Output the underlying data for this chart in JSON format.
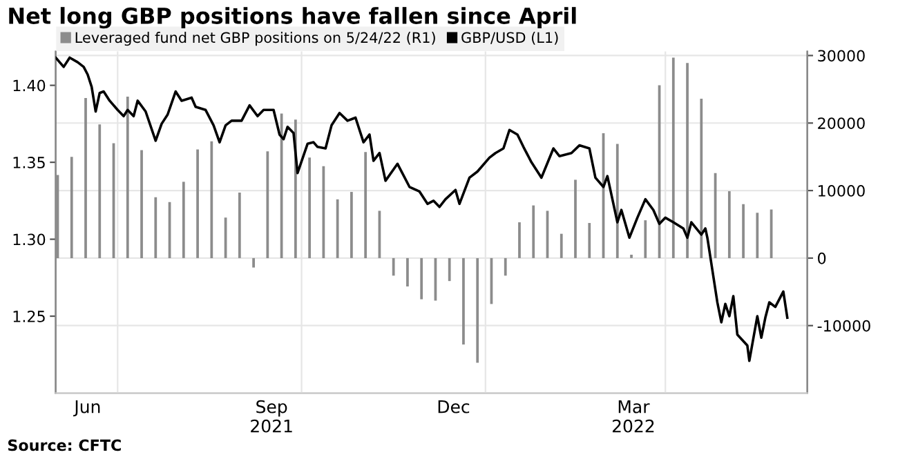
{
  "chart_data": {
    "type": "bar",
    "title": "Net long GBP positions have fallen since April",
    "annotations": [
      "Source: CFTC"
    ],
    "series": [
      {
        "name": "Leveraged fund net GBP positions on 5/24/22 (R1)",
        "axis": "y2",
        "color": "#8c8c8c",
        "x": [
          "2021-06-01",
          "2021-06-08",
          "2021-06-15",
          "2021-06-22",
          "2021-06-29",
          "2021-07-06",
          "2021-07-13",
          "2021-07-20",
          "2021-07-27",
          "2021-08-03",
          "2021-08-10",
          "2021-08-17",
          "2021-08-24",
          "2021-08-31",
          "2021-09-07",
          "2021-09-14",
          "2021-09-21",
          "2021-09-28",
          "2021-10-05",
          "2021-10-12",
          "2021-10-19",
          "2021-10-26",
          "2021-11-02",
          "2021-11-09",
          "2021-11-16",
          "2021-11-23",
          "2021-11-30",
          "2021-12-07",
          "2021-12-14",
          "2021-12-21",
          "2021-12-28",
          "2022-01-04",
          "2022-01-11",
          "2022-01-18",
          "2022-01-25",
          "2022-02-01",
          "2022-02-08",
          "2022-02-15",
          "2022-02-22",
          "2022-03-01",
          "2022-03-08",
          "2022-03-15",
          "2022-03-22",
          "2022-03-29",
          "2022-04-05",
          "2022-04-12",
          "2022-04-19",
          "2022-04-26",
          "2022-05-03",
          "2022-05-10",
          "2022-05-17",
          "2022-05-24"
        ],
        "values": [
          12300,
          15000,
          23700,
          19800,
          17000,
          23900,
          16000,
          9000,
          8300,
          11300,
          16100,
          17300,
          6000,
          9700,
          -1400,
          15800,
          21400,
          20500,
          14900,
          13600,
          8700,
          9800,
          15700,
          7000,
          -2600,
          -4200,
          -6100,
          -6300,
          -3400,
          -12800,
          -15500,
          -6800,
          -2600,
          5300,
          7800,
          7000,
          3600,
          11600,
          5200,
          18500,
          16900,
          500,
          5600,
          25600,
          29700,
          28900,
          23600,
          12600,
          9900,
          8000,
          6700,
          7200
        ]
      },
      {
        "name": "GBP/USD (L1)",
        "type": "line",
        "axis": "y",
        "color": "#000000",
        "x": [
          "2021-05-31",
          "2021-06-04",
          "2021-06-07",
          "2021-06-11",
          "2021-06-14",
          "2021-06-16",
          "2021-06-18",
          "2021-06-20",
          "2021-06-22",
          "2021-06-24",
          "2021-06-27",
          "2021-07-01",
          "2021-07-04",
          "2021-07-06",
          "2021-07-09",
          "2021-07-11",
          "2021-07-15",
          "2021-07-20",
          "2021-07-23",
          "2021-07-26",
          "2021-07-30",
          "2021-08-02",
          "2021-08-07",
          "2021-08-09",
          "2021-08-14",
          "2021-08-18",
          "2021-08-21",
          "2021-08-24",
          "2021-08-27",
          "2021-09-01",
          "2021-09-05",
          "2021-09-09",
          "2021-09-12",
          "2021-09-17",
          "2021-09-20",
          "2021-09-22",
          "2021-09-24",
          "2021-09-27",
          "2021-09-29",
          "2021-10-04",
          "2021-10-07",
          "2021-10-09",
          "2021-10-13",
          "2021-10-16",
          "2021-10-20",
          "2021-10-24",
          "2021-10-28",
          "2021-11-01",
          "2021-11-04",
          "2021-11-06",
          "2021-11-09",
          "2021-11-12",
          "2021-11-18",
          "2021-11-24",
          "2021-11-29",
          "2021-12-03",
          "2021-12-06",
          "2021-12-09",
          "2021-12-12",
          "2021-12-17",
          "2021-12-19",
          "2021-12-24",
          "2021-12-28",
          "2022-01-03",
          "2022-01-06",
          "2022-01-10",
          "2022-01-13",
          "2022-01-17",
          "2022-01-20",
          "2022-01-24",
          "2022-01-29",
          "2022-02-04",
          "2022-02-07",
          "2022-02-13",
          "2022-02-17",
          "2022-02-22",
          "2022-02-25",
          "2022-03-01",
          "2022-03-03",
          "2022-03-08",
          "2022-03-10",
          "2022-03-14",
          "2022-03-18",
          "2022-03-22",
          "2022-03-26",
          "2022-03-29",
          "2022-04-01",
          "2022-04-05",
          "2022-04-10",
          "2022-04-12",
          "2022-04-14",
          "2022-04-19",
          "2022-04-21",
          "2022-04-22",
          "2022-04-27",
          "2022-04-29",
          "2022-05-01",
          "2022-05-03",
          "2022-05-05",
          "2022-05-07",
          "2022-05-12",
          "2022-05-13",
          "2022-05-17",
          "2022-05-19",
          "2022-05-21",
          "2022-05-23",
          "2022-05-26",
          "2022-05-30",
          "2022-06-01"
        ],
        "values": [
          1.418,
          1.412,
          1.418,
          1.415,
          1.412,
          1.407,
          1.399,
          1.383,
          1.395,
          1.396,
          1.39,
          1.384,
          1.38,
          1.384,
          1.38,
          1.39,
          1.383,
          1.364,
          1.375,
          1.381,
          1.396,
          1.39,
          1.392,
          1.386,
          1.384,
          1.374,
          1.363,
          1.374,
          1.377,
          1.377,
          1.387,
          1.38,
          1.384,
          1.384,
          1.368,
          1.365,
          1.373,
          1.369,
          1.343,
          1.362,
          1.363,
          1.36,
          1.359,
          1.374,
          1.382,
          1.377,
          1.379,
          1.363,
          1.368,
          1.351,
          1.356,
          1.338,
          1.349,
          1.334,
          1.331,
          1.323,
          1.325,
          1.321,
          1.326,
          1.332,
          1.323,
          1.34,
          1.344,
          1.353,
          1.356,
          1.359,
          1.371,
          1.368,
          1.36,
          1.35,
          1.34,
          1.359,
          1.354,
          1.356,
          1.361,
          1.359,
          1.34,
          1.334,
          1.341,
          1.311,
          1.319,
          1.301,
          1.314,
          1.326,
          1.319,
          1.31,
          1.314,
          1.311,
          1.307,
          1.301,
          1.311,
          1.303,
          1.307,
          1.301,
          1.259,
          1.246,
          1.258,
          1.25,
          1.263,
          1.238,
          1.231,
          1.221,
          1.25,
          1.236,
          1.249,
          1.259,
          1.256,
          1.266,
          1.249
        ]
      }
    ],
    "xlim": [
      "2021-05-31",
      "2022-06-11"
    ],
    "xticks": [
      {
        "value": "2021-06-16",
        "label": "Jun"
      },
      {
        "value": "2021-07-01",
        "label": null
      },
      {
        "value": "2021-09-16",
        "label": "Sep\n2021"
      },
      {
        "value": "2021-10-01",
        "label": null
      },
      {
        "value": "2021-12-16",
        "label": "Dec"
      },
      {
        "value": "2022-01-01",
        "label": null
      },
      {
        "value": "2022-03-16",
        "label": "Mar\n2022"
      },
      {
        "value": "2022-04-01",
        "label": null
      }
    ],
    "ylim": [
      1.2,
      1.422
    ],
    "yticks": [
      {
        "value": 1.25,
        "label": "1.25"
      },
      {
        "value": 1.3,
        "label": "1.30"
      },
      {
        "value": 1.35,
        "label": "1.35"
      },
      {
        "value": 1.4,
        "label": "1.40"
      }
    ],
    "y2lim": [
      -20000,
      30600
    ],
    "y2ticks": [
      -10000,
      0,
      10000,
      20000,
      30000
    ],
    "grid": true,
    "legend": "top"
  }
}
